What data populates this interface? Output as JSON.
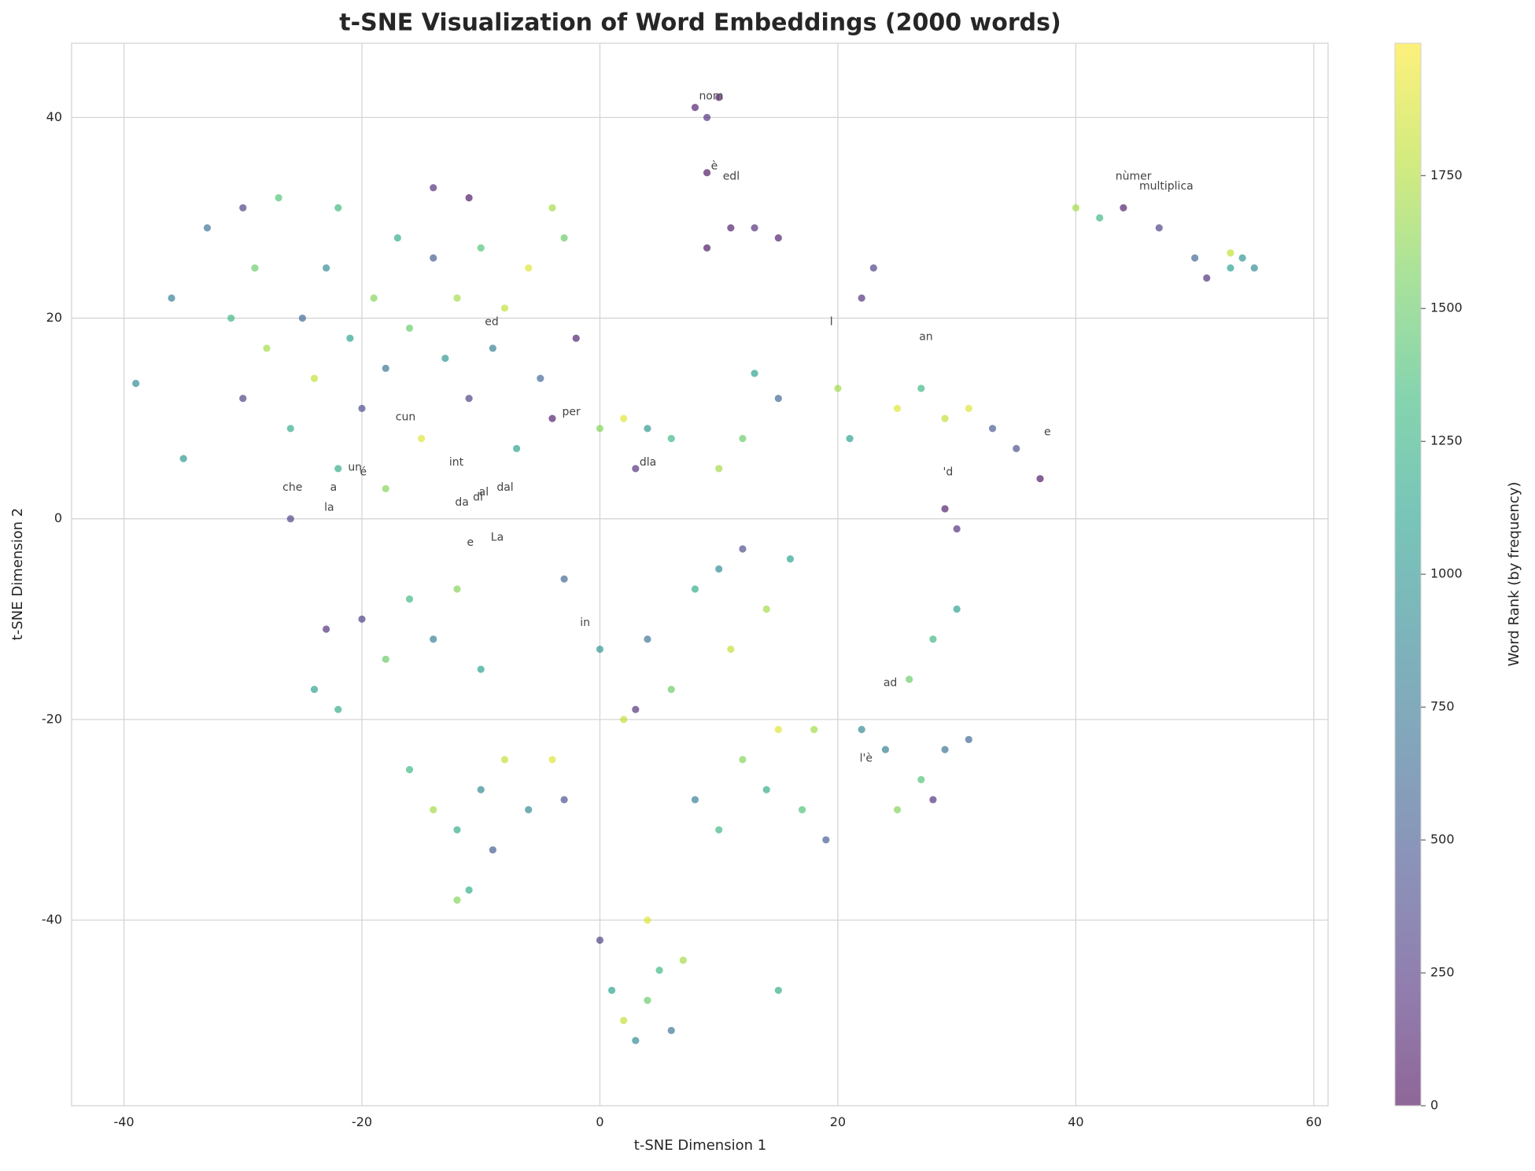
{
  "chart_data": {
    "type": "scatter",
    "title": "t-SNE Visualization of Word Embeddings (2000 words)",
    "xlabel": "t-SNE Dimension 1",
    "ylabel": "t-SNE Dimension 2",
    "colorbar_label": "Word Rank (by frequency)",
    "colormap": "viridis",
    "clim": [
      0,
      1999
    ],
    "cticks": [
      0,
      250,
      500,
      750,
      1000,
      1250,
      1500,
      1750
    ],
    "xlim": [
      -44.4,
      61.2
    ],
    "ylim": [
      -58.5,
      47.4
    ],
    "xticks": [
      -40,
      -20,
      0,
      20,
      40,
      60
    ],
    "yticks": [
      -40,
      -20,
      0,
      20,
      40
    ],
    "grid": true,
    "x": [
      -39,
      -36,
      -35,
      -33,
      -31,
      -30,
      -29,
      -28,
      -27,
      -26,
      -25,
      -24,
      -23,
      -22,
      -21,
      -20,
      -19,
      -18,
      -17,
      -16,
      -15,
      -14,
      -13,
      -12,
      -11,
      -10,
      -9,
      -8,
      -7,
      -6,
      -5,
      -4,
      -3,
      -2,
      -14,
      -11,
      -30,
      -22,
      -18,
      -26,
      -24,
      -22,
      -20,
      -18,
      -16,
      -14,
      -12,
      -10,
      -16,
      -14,
      -12,
      -10,
      -8,
      -11,
      -12,
      -6,
      -4,
      -3,
      -9,
      -23,
      0,
      2,
      4,
      6,
      8,
      10,
      12,
      14,
      11,
      16,
      12,
      14,
      17,
      19,
      10,
      8,
      15,
      3,
      -3,
      18,
      22,
      24,
      26,
      28,
      30,
      29,
      31,
      25,
      27,
      28,
      0,
      1,
      2,
      3,
      4,
      5,
      6,
      7,
      4,
      15,
      0,
      2,
      4,
      6,
      10,
      13,
      15,
      12,
      3,
      -4,
      20,
      22,
      23,
      25,
      27,
      29,
      31,
      33,
      35,
      37,
      29,
      30,
      21,
      8,
      9,
      10,
      9,
      11,
      13,
      15,
      9,
      40,
      42,
      44,
      47,
      50,
      51,
      53,
      54,
      55,
      53
    ],
    "y": [
      13.5,
      22,
      6,
      29,
      20,
      12,
      25,
      17,
      32,
      9,
      20,
      14,
      25,
      31,
      18,
      11,
      22,
      15,
      28,
      19,
      8,
      26,
      16,
      22,
      12,
      27,
      17,
      21,
      7,
      25,
      14,
      31,
      28,
      18,
      33,
      32,
      31,
      5,
      3,
      0,
      -17,
      -19,
      -10,
      -14,
      -8,
      -12,
      -7,
      -15,
      -25,
      -29,
      -31,
      -27,
      -24,
      -37,
      -38,
      -29,
      -24,
      -28,
      -33,
      -11,
      -13,
      -20,
      -12,
      -17,
      -7,
      -5,
      -3,
      -9,
      -13,
      -4,
      -24,
      -27,
      -29,
      -32,
      -31,
      -28,
      -21,
      -19,
      -6,
      -21,
      -21,
      -23,
      -16,
      -12,
      -9,
      -23,
      -22,
      -29,
      -26,
      -28,
      -42,
      -47,
      -50,
      -52,
      -48,
      -45,
      -51,
      -44,
      -40,
      -47,
      9,
      10,
      9,
      8,
      5,
      14.5,
      12,
      8,
      5,
      10,
      13,
      22,
      25,
      11,
      13,
      10,
      11,
      9,
      7,
      4,
      1,
      -1,
      8,
      41,
      40,
      42,
      27,
      29,
      29,
      28,
      34.5,
      31,
      30,
      31,
      29,
      26,
      24,
      25,
      26,
      25,
      26.5
    ],
    "c": [
      900,
      800,
      1000,
      700,
      1300,
      300,
      1500,
      1700,
      1400,
      1200,
      600,
      1800,
      900,
      1300,
      1100,
      400,
      1600,
      700,
      1200,
      1500,
      1900,
      500,
      1000,
      1700,
      300,
      1400,
      800,
      1800,
      1100,
      1900,
      600,
      1700,
      1500,
      100,
      200,
      50,
      300,
      1200,
      1600,
      300,
      1100,
      1200,
      300,
      1500,
      1300,
      800,
      1600,
      1100,
      1300,
      1700,
      1200,
      900,
      1800,
      1200,
      1600,
      900,
      1900,
      400,
      500,
      200,
      1000,
      1800,
      700,
      1500,
      1200,
      900,
      400,
      1700,
      1800,
      1100,
      1600,
      1200,
      1400,
      500,
      1300,
      800,
      1900,
      200,
      600,
      1700,
      900,
      800,
      1500,
      1300,
      1100,
      700,
      600,
      1600,
      1400,
      200,
      300,
      1100,
      1800,
      900,
      1500,
      1300,
      700,
      1700,
      1900,
      1200,
      1600,
      1900,
      1000,
      1300,
      1700,
      1100,
      600,
      1500,
      200,
      100,
      1700,
      200,
      300,
      1900,
      1300,
      1800,
      1900,
      500,
      400,
      50,
      100,
      200,
      1100,
      100,
      200,
      50,
      50,
      100,
      200,
      100,
      50,
      1700,
      1300,
      100,
      300,
      600,
      200,
      1100,
      1000,
      900,
      1800
    ],
    "annotations": [
      {
        "text": "ed",
        "x": -10,
        "y": 19
      },
      {
        "text": "per",
        "x": -3.5,
        "y": 10
      },
      {
        "text": "cun",
        "x": -17.5,
        "y": 9.5
      },
      {
        "text": "int",
        "x": -13,
        "y": 5
      },
      {
        "text": "dla",
        "x": 3,
        "y": 5
      },
      {
        "text": "che",
        "x": -27,
        "y": 2.5
      },
      {
        "text": "a",
        "x": -23,
        "y": 2.5
      },
      {
        "text": "un",
        "x": -21.5,
        "y": 4.5
      },
      {
        "text": "é",
        "x": -20.5,
        "y": 4
      },
      {
        "text": "la",
        "x": -23.5,
        "y": 0.5
      },
      {
        "text": "al",
        "x": -10.5,
        "y": 2
      },
      {
        "text": "dl",
        "x": -11,
        "y": 1.5
      },
      {
        "text": "dal",
        "x": -9,
        "y": 2.5
      },
      {
        "text": "da",
        "x": -12.5,
        "y": 1
      },
      {
        "text": "e",
        "x": -11.5,
        "y": -3
      },
      {
        "text": "La",
        "x": -9.5,
        "y": -2.5
      },
      {
        "text": "in",
        "x": -2,
        "y": -11
      },
      {
        "text": "an",
        "x": 26.5,
        "y": 17.5
      },
      {
        "text": "l",
        "x": 19,
        "y": 19
      },
      {
        "text": "'d",
        "x": 28.5,
        "y": 4
      },
      {
        "text": "e",
        "x": 37,
        "y": 8
      },
      {
        "text": "ad",
        "x": 23.5,
        "y": -17
      },
      {
        "text": "l'è",
        "x": 21.5,
        "y": -24.5
      },
      {
        "text": "è",
        "x": 9,
        "y": 34.5
      },
      {
        "text": "edl",
        "x": 10,
        "y": 33.5
      },
      {
        "text": "nùmer",
        "x": 43,
        "y": 33.5
      },
      {
        "text": "multiplica",
        "x": 45,
        "y": 32.5
      },
      {
        "text": "nom",
        "x": 8,
        "y": 41.5
      }
    ]
  }
}
